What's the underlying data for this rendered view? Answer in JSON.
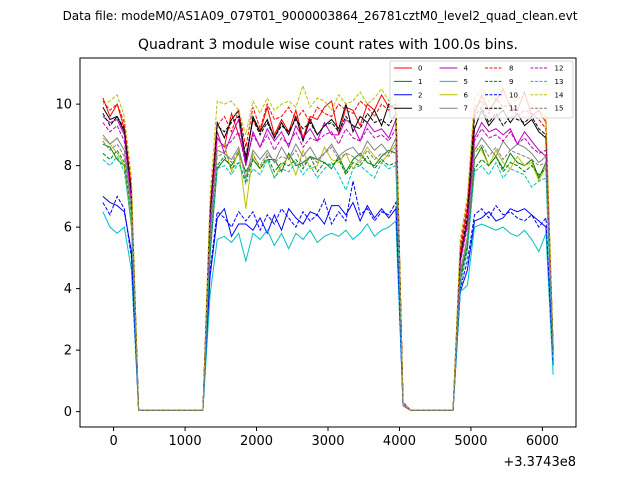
{
  "chart_data": {
    "type": "line",
    "suptitle": "Data file: modeM0/AS1A09_079T01_9000003864_26781cztM0_level2_quad_clean.evt",
    "title": "Quadrant 3 module wise count rates with 100.0s bins.",
    "xlabel": "",
    "ylabel": "",
    "x_offset_label": "+3.3743e8",
    "xlim": [
      -470,
      6470
    ],
    "ylim": [
      -0.5,
      11.5
    ],
    "xticks": [
      0,
      1000,
      2000,
      3000,
      4000,
      5000,
      6000
    ],
    "xtick_labels": [
      "0",
      "1000",
      "2000",
      "3000",
      "4000",
      "5000",
      "6000"
    ],
    "yticks": [
      0,
      2,
      4,
      6,
      8,
      10
    ],
    "ytick_labels": [
      "0",
      "2",
      "4",
      "6",
      "8",
      "10"
    ],
    "legend_position": "top-right",
    "x": [
      -150,
      -50,
      50,
      150,
      250,
      350,
      450,
      550,
      650,
      750,
      850,
      950,
      1050,
      1150,
      1250,
      1350,
      1450,
      1550,
      1650,
      1750,
      1850,
      1950,
      2050,
      2150,
      2250,
      2350,
      2450,
      2550,
      2650,
      2750,
      2850,
      2950,
      3050,
      3150,
      3250,
      3350,
      3450,
      3550,
      3650,
      3750,
      3850,
      3950,
      4050,
      4150,
      4250,
      4350,
      4450,
      4550,
      4650,
      4750,
      4850,
      4950,
      5050,
      5150,
      5250,
      5350,
      5450,
      5550,
      5650,
      5750,
      5850,
      5950,
      6050,
      6150
    ],
    "series": [
      {
        "name": "0",
        "color": "#ff0000",
        "dash": "solid",
        "values": [
          10.2,
          9.6,
          10.0,
          9.2,
          7.2,
          0.05,
          0.05,
          0.05,
          0.05,
          0.05,
          0.05,
          0.05,
          0.05,
          0.05,
          0.05,
          6.6,
          8.9,
          8.6,
          9.7,
          9.0,
          8.2,
          9.5,
          9.1,
          9.9,
          9.0,
          9.5,
          9.1,
          9.8,
          8.9,
          9.6,
          9.5,
          9.9,
          10.1,
          9.0,
          9.9,
          9.8,
          9.3,
          10.0,
          9.8,
          10.3,
          9.9,
          10.0,
          0.3,
          0.05,
          0.05,
          0.05,
          0.05,
          0.05,
          0.05,
          0.05,
          5.2,
          6.6,
          9.7,
          10.3,
          9.8,
          10.1,
          10.5,
          9.9,
          9.8,
          10.4,
          9.6,
          9.8,
          9.4,
          2.0
        ]
      },
      {
        "name": "1",
        "color": "#008000",
        "dash": "solid",
        "values": [
          8.7,
          8.6,
          8.2,
          8.0,
          6.0,
          0.05,
          0.05,
          0.05,
          0.05,
          0.05,
          0.05,
          0.05,
          0.05,
          0.05,
          0.05,
          5.1,
          7.9,
          8.2,
          8.0,
          8.4,
          7.8,
          8.2,
          7.9,
          8.2,
          8.2,
          7.8,
          8.4,
          8.0,
          8.1,
          8.3,
          8.2,
          8.1,
          7.9,
          8.3,
          7.8,
          8.2,
          8.4,
          8.1,
          8.0,
          8.3,
          8.5,
          8.4,
          0.2,
          0.05,
          0.05,
          0.05,
          0.05,
          0.05,
          0.05,
          0.05,
          4.4,
          5.4,
          8.2,
          8.6,
          8.0,
          8.3,
          7.9,
          8.4,
          8.1,
          8.0,
          8.2,
          7.6,
          8.1,
          1.9
        ]
      },
      {
        "name": "2",
        "color": "#0000ff",
        "dash": "solid",
        "values": [
          7.0,
          6.8,
          6.7,
          6.5,
          5.2,
          0.05,
          0.05,
          0.05,
          0.05,
          0.05,
          0.05,
          0.05,
          0.05,
          0.05,
          0.05,
          4.4,
          6.3,
          6.6,
          5.7,
          6.1,
          6.1,
          5.9,
          6.3,
          5.8,
          6.4,
          5.9,
          6.6,
          6.3,
          6.1,
          6.5,
          6.4,
          6.1,
          6.7,
          6.7,
          6.4,
          6.8,
          6.2,
          6.7,
          6.3,
          6.6,
          6.3,
          6.6,
          0.2,
          0.05,
          0.05,
          0.05,
          0.05,
          0.05,
          0.05,
          0.05,
          3.9,
          4.6,
          6.2,
          6.3,
          6.5,
          6.2,
          6.3,
          6.6,
          6.5,
          6.6,
          6.4,
          6.2,
          6.0,
          1.5
        ]
      },
      {
        "name": "3",
        "color": "#000000",
        "dash": "solid",
        "values": [
          9.9,
          9.5,
          9.6,
          9.1,
          7.0,
          0.05,
          0.05,
          0.05,
          0.05,
          0.05,
          0.05,
          0.05,
          0.05,
          0.05,
          0.05,
          6.5,
          9.4,
          8.9,
          9.5,
          9.8,
          8.1,
          9.6,
          9.1,
          9.5,
          8.9,
          9.4,
          9.0,
          9.6,
          8.8,
          9.5,
          9.0,
          9.3,
          9.5,
          9.2,
          10.0,
          9.1,
          9.6,
          9.4,
          9.8,
          9.3,
          10.0,
          9.8,
          0.3,
          0.05,
          0.05,
          0.05,
          0.05,
          0.05,
          0.05,
          0.05,
          5.0,
          6.2,
          9.2,
          9.8,
          9.3,
          9.6,
          9.8,
          9.4,
          9.7,
          9.3,
          9.5,
          9.1,
          8.9,
          2.1
        ]
      },
      {
        "name": "4",
        "color": "#bf00bf",
        "dash": "solid",
        "values": [
          9.6,
          9.4,
          9.5,
          9.0,
          6.8,
          0.05,
          0.05,
          0.05,
          0.05,
          0.05,
          0.05,
          0.05,
          0.05,
          0.05,
          0.05,
          6.3,
          9.1,
          8.4,
          9.0,
          9.5,
          8.0,
          9.1,
          8.6,
          9.2,
          8.8,
          9.1,
          8.6,
          9.3,
          8.9,
          9.2,
          8.8,
          9.4,
          9.0,
          9.0,
          9.5,
          9.3,
          8.8,
          9.4,
          9.1,
          9.2,
          8.9,
          9.5,
          0.3,
          0.05,
          0.05,
          0.05,
          0.05,
          0.05,
          0.05,
          0.05,
          4.9,
          6.1,
          8.9,
          9.4,
          9.1,
          9.2,
          9.0,
          9.2,
          8.7,
          9.1,
          8.8,
          8.5,
          8.3,
          2.0
        ]
      },
      {
        "name": "5",
        "color": "#00bfbf",
        "dash": "solid",
        "values": [
          6.5,
          6.0,
          5.8,
          6.0,
          4.6,
          0.05,
          0.05,
          0.05,
          0.05,
          0.05,
          0.05,
          0.05,
          0.05,
          0.05,
          0.05,
          3.8,
          5.6,
          5.7,
          5.5,
          5.8,
          4.9,
          5.8,
          5.6,
          5.9,
          5.4,
          5.8,
          5.3,
          5.8,
          5.6,
          5.9,
          5.5,
          5.7,
          5.8,
          5.7,
          5.9,
          5.6,
          5.8,
          6.1,
          5.7,
          5.9,
          6.0,
          6.2,
          0.2,
          0.05,
          0.05,
          0.05,
          0.05,
          0.05,
          0.05,
          0.05,
          3.9,
          4.1,
          6.0,
          6.1,
          6.0,
          5.9,
          6.0,
          5.8,
          5.7,
          5.9,
          5.6,
          5.2,
          5.8,
          1.2
        ]
      },
      {
        "name": "6",
        "color": "#bfbf00",
        "dash": "solid",
        "values": [
          8.9,
          8.7,
          8.4,
          8.0,
          6.1,
          0.05,
          0.05,
          0.05,
          0.05,
          0.05,
          0.05,
          0.05,
          0.05,
          0.05,
          0.05,
          5.7,
          8.6,
          8.7,
          7.8,
          8.5,
          6.6,
          8.4,
          7.9,
          8.2,
          7.6,
          8.0,
          8.3,
          7.7,
          8.5,
          7.9,
          8.0,
          8.6,
          8.2,
          8.1,
          8.4,
          7.9,
          8.2,
          8.6,
          8.3,
          8.1,
          8.4,
          8.7,
          0.2,
          0.05,
          0.05,
          0.05,
          0.05,
          0.05,
          0.05,
          0.05,
          4.5,
          5.7,
          8.6,
          8.5,
          8.0,
          8.5,
          8.1,
          7.9,
          8.3,
          8.0,
          8.1,
          7.5,
          8.0,
          1.9
        ]
      },
      {
        "name": "7",
        "color": "#808080",
        "dash": "solid",
        "values": [
          9.0,
          8.7,
          8.9,
          8.5,
          6.6,
          0.05,
          0.05,
          0.05,
          0.05,
          0.05,
          0.05,
          0.05,
          0.05,
          0.05,
          0.05,
          5.8,
          8.5,
          8.4,
          8.2,
          8.6,
          7.6,
          8.5,
          8.2,
          8.5,
          8.1,
          8.6,
          8.2,
          8.7,
          8.3,
          8.6,
          8.2,
          8.4,
          8.7,
          8.3,
          8.5,
          8.6,
          8.3,
          8.8,
          8.5,
          8.7,
          8.4,
          8.9,
          0.2,
          0.05,
          0.05,
          0.05,
          0.05,
          0.05,
          0.05,
          0.05,
          4.6,
          5.6,
          8.5,
          8.9,
          8.6,
          8.3,
          8.8,
          8.5,
          8.7,
          8.6,
          8.4,
          8.1,
          8.3,
          1.9
        ]
      },
      {
        "name": "8",
        "color": "#ff0000",
        "dash": "dashed",
        "values": [
          10.1,
          9.8,
          10.0,
          9.4,
          7.4,
          0.05,
          0.05,
          0.05,
          0.05,
          0.05,
          0.05,
          0.05,
          0.05,
          0.05,
          0.05,
          6.8,
          9.3,
          9.6,
          9.1,
          9.8,
          8.6,
          9.9,
          9.2,
          10.0,
          9.5,
          9.6,
          9.9,
          9.5,
          9.8,
          9.4,
          9.9,
          9.7,
          9.6,
          10.0,
          9.8,
          9.7,
          10.1,
          9.9,
          9.6,
          10.0,
          9.8,
          10.0,
          0.3,
          0.05,
          0.05,
          0.05,
          0.05,
          0.05,
          0.05,
          0.05,
          5.4,
          6.8,
          9.9,
          10.1,
          9.7,
          10.2,
          9.9,
          10.0,
          9.6,
          9.8,
          9.7,
          9.5,
          9.2,
          2.1
        ]
      },
      {
        "name": "9",
        "color": "#008000",
        "dash": "dashed",
        "values": [
          8.4,
          8.2,
          8.5,
          8.1,
          6.4,
          0.05,
          0.05,
          0.05,
          0.05,
          0.05,
          0.05,
          0.05,
          0.05,
          0.05,
          0.05,
          5.5,
          8.0,
          8.3,
          7.9,
          8.1,
          7.5,
          8.2,
          7.9,
          8.3,
          7.8,
          8.1,
          8.0,
          8.2,
          7.9,
          8.3,
          7.8,
          8.1,
          8.0,
          8.2,
          7.7,
          8.1,
          8.0,
          8.3,
          7.9,
          8.2,
          8.0,
          8.1,
          0.2,
          0.05,
          0.05,
          0.05,
          0.05,
          0.05,
          0.05,
          0.05,
          4.2,
          5.3,
          7.9,
          8.2,
          8.0,
          8.3,
          7.8,
          8.1,
          8.0,
          7.8,
          8.0,
          7.7,
          7.9,
          1.8
        ]
      },
      {
        "name": "10",
        "color": "#0000ff",
        "dash": "dashed",
        "values": [
          6.8,
          6.4,
          7.0,
          6.6,
          5.0,
          0.05,
          0.05,
          0.05,
          0.05,
          0.05,
          0.05,
          0.05,
          0.05,
          0.05,
          0.05,
          4.6,
          6.5,
          6.3,
          6.0,
          6.5,
          6.2,
          6.5,
          5.9,
          6.4,
          6.1,
          6.6,
          6.3,
          6.0,
          6.5,
          6.2,
          6.4,
          6.9,
          6.1,
          6.5,
          6.2,
          7.5,
          6.4,
          6.6,
          6.2,
          6.5,
          6.4,
          6.8,
          0.2,
          0.05,
          0.05,
          0.05,
          0.05,
          0.05,
          0.05,
          0.05,
          4.0,
          4.9,
          6.4,
          6.6,
          6.3,
          6.7,
          6.4,
          6.5,
          6.3,
          6.2,
          6.4,
          6.0,
          6.3,
          1.6
        ]
      },
      {
        "name": "11",
        "color": "#000000",
        "dash": "dashed",
        "values": [
          9.7,
          9.3,
          9.6,
          9.2,
          7.1,
          0.05,
          0.05,
          0.05,
          0.05,
          0.05,
          0.05,
          0.05,
          0.05,
          0.05,
          0.05,
          6.4,
          9.3,
          9.1,
          9.4,
          9.6,
          8.3,
          9.5,
          9.0,
          9.4,
          8.9,
          9.3,
          9.1,
          9.5,
          9.2,
          9.4,
          9.0,
          9.3,
          9.4,
          9.1,
          9.6,
          9.3,
          9.2,
          9.7,
          9.4,
          9.5,
          9.3,
          9.7,
          0.3,
          0.05,
          0.05,
          0.05,
          0.05,
          0.05,
          0.05,
          0.05,
          5.0,
          6.4,
          9.6,
          9.9,
          9.4,
          9.7,
          9.3,
          9.6,
          9.5,
          9.4,
          9.6,
          9.2,
          9.0,
          2.0
        ]
      },
      {
        "name": "12",
        "color": "#bf00bf",
        "dash": "dashed",
        "values": [
          9.4,
          9.1,
          9.3,
          8.8,
          6.9,
          0.05,
          0.05,
          0.05,
          0.05,
          0.05,
          0.05,
          0.05,
          0.05,
          0.05,
          0.05,
          6.1,
          8.9,
          8.6,
          8.8,
          9.1,
          8.0,
          9.0,
          8.6,
          9.0,
          8.5,
          8.9,
          8.7,
          9.1,
          8.6,
          8.9,
          8.8,
          9.0,
          9.1,
          8.7,
          9.2,
          8.9,
          8.8,
          9.2,
          8.9,
          9.0,
          8.8,
          9.2,
          0.3,
          0.05,
          0.05,
          0.05,
          0.05,
          0.05,
          0.05,
          0.05,
          4.8,
          6.0,
          8.8,
          9.2,
          8.9,
          9.0,
          8.8,
          9.1,
          8.7,
          8.9,
          8.6,
          8.4,
          8.5,
          2.0
        ]
      },
      {
        "name": "13",
        "color": "#00bfbf",
        "dash": "dashed",
        "values": [
          8.2,
          8.0,
          8.3,
          7.8,
          6.2,
          0.05,
          0.05,
          0.05,
          0.05,
          0.05,
          0.05,
          0.05,
          0.05,
          0.05,
          0.05,
          5.3,
          7.9,
          8.0,
          7.7,
          8.1,
          7.4,
          7.9,
          7.7,
          8.2,
          7.6,
          7.9,
          7.8,
          8.1,
          7.7,
          8.0,
          7.6,
          7.9,
          8.1,
          7.7,
          7.2,
          7.9,
          8.0,
          7.8,
          7.6,
          8.1,
          7.9,
          8.0,
          0.2,
          0.05,
          0.05,
          0.05,
          0.05,
          0.05,
          0.05,
          0.05,
          4.1,
          5.2,
          7.8,
          8.0,
          7.7,
          8.1,
          7.6,
          7.9,
          7.8,
          7.7,
          7.3,
          7.5,
          7.6,
          1.7
        ]
      },
      {
        "name": "14",
        "color": "#bfbf00",
        "dash": "dashed",
        "values": [
          10.0,
          10.1,
          10.3,
          9.6,
          7.6,
          0.05,
          0.05,
          0.05,
          0.05,
          0.05,
          0.05,
          0.05,
          0.05,
          0.05,
          0.05,
          7.0,
          10.1,
          10.0,
          10.1,
          9.8,
          9.0,
          10.1,
          9.7,
          10.2,
          9.8,
          10.0,
          10.1,
          9.9,
          10.6,
          9.9,
          10.2,
          10.1,
          9.8,
          10.3,
          10.0,
          10.1,
          10.4,
          10.0,
          10.2,
          10.5,
          10.1,
          10.3,
          0.3,
          0.05,
          0.05,
          0.05,
          0.05,
          0.05,
          0.05,
          0.05,
          5.6,
          7.0,
          10.2,
          10.5,
          10.1,
          10.3,
          10.4,
          10.0,
          10.2,
          10.1,
          10.0,
          9.8,
          9.6,
          2.2
        ]
      },
      {
        "name": "15",
        "color": "#808080",
        "dash": "dashed",
        "values": [
          8.8,
          8.5,
          8.7,
          8.3,
          6.5,
          0.05,
          0.05,
          0.05,
          0.05,
          0.05,
          0.05,
          0.05,
          0.05,
          0.05,
          0.05,
          5.6,
          8.3,
          8.4,
          8.1,
          8.5,
          7.6,
          8.3,
          8.0,
          8.4,
          8.1,
          8.3,
          8.2,
          8.5,
          8.0,
          8.3,
          8.1,
          8.4,
          8.6,
          8.2,
          8.4,
          8.3,
          8.1,
          8.5,
          8.2,
          8.4,
          8.3,
          8.6,
          0.2,
          0.05,
          0.05,
          0.05,
          0.05,
          0.05,
          0.05,
          0.05,
          4.5,
          5.6,
          8.4,
          8.7,
          8.3,
          8.6,
          8.2,
          8.5,
          8.4,
          8.3,
          8.2,
          8.0,
          8.1,
          1.9
        ]
      }
    ]
  }
}
